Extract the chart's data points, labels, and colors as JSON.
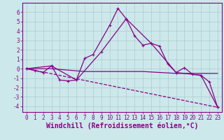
{
  "xlabel": "Windchill (Refroidissement éolien,°C)",
  "background_color": "#cce8ea",
  "line_color": "#880088",
  "xlim": [
    -0.5,
    23.5
  ],
  "ylim": [
    -4.6,
    7.0
  ],
  "yticks": [
    -4,
    -3,
    -2,
    -1,
    0,
    1,
    2,
    3,
    4,
    5,
    6
  ],
  "xticks": [
    0,
    1,
    2,
    3,
    4,
    5,
    6,
    7,
    8,
    9,
    10,
    11,
    12,
    13,
    14,
    15,
    16,
    17,
    18,
    19,
    20,
    21,
    22,
    23
  ],
  "series1_x": [
    0,
    1,
    2,
    3,
    4,
    5,
    6,
    7,
    8,
    10,
    11,
    12,
    13,
    14,
    15,
    16,
    17,
    18,
    19,
    20,
    21,
    22,
    23
  ],
  "series1_y": [
    0.0,
    -0.2,
    -0.4,
    0.3,
    -1.2,
    -1.3,
    -1.2,
    1.1,
    1.5,
    4.6,
    6.4,
    5.3,
    3.5,
    2.5,
    2.7,
    2.4,
    0.5,
    -0.4,
    0.1,
    -0.6,
    -0.7,
    -1.4,
    -4.1
  ],
  "series2_x": [
    0,
    3,
    6,
    9,
    12,
    15,
    18,
    21,
    23
  ],
  "series2_y": [
    0.0,
    0.3,
    -1.2,
    1.8,
    5.3,
    2.7,
    -0.4,
    -0.7,
    -4.1
  ],
  "series3_x": [
    0,
    23
  ],
  "series3_y": [
    0.0,
    -4.1
  ],
  "series4_x": [
    0,
    3,
    7,
    14,
    18,
    20,
    23
  ],
  "series4_y": [
    0.0,
    0.0,
    -0.3,
    -0.3,
    -0.5,
    -0.5,
    -0.5
  ],
  "grid_color": "#aacccc",
  "tick_fontsize": 5.5,
  "xlabel_fontsize": 7.0,
  "lw": 0.9
}
